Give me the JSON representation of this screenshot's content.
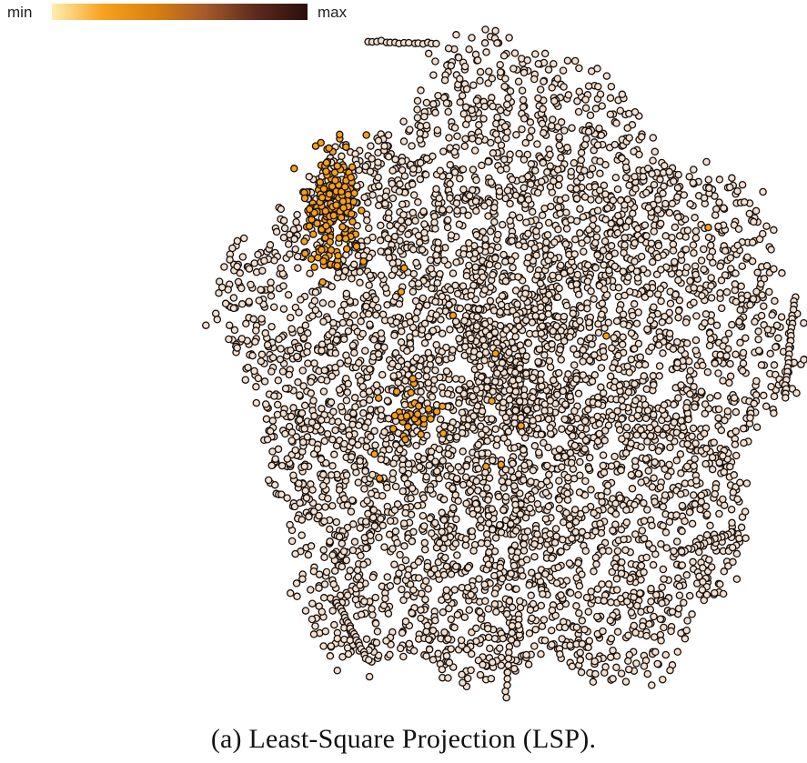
{
  "chart_data": {
    "type": "scatter",
    "title": "",
    "xlabel": "",
    "ylabel": "",
    "x_axis_visible": false,
    "y_axis_visible": false,
    "grid": false,
    "colormap": {
      "min_label": "min",
      "max_label": "max",
      "colors": [
        "#ffeeb0",
        "#f6a21e",
        "#d9800f",
        "#a45a2a",
        "#5c2a1c",
        "#2a0f0c"
      ],
      "placement": "top-left"
    },
    "point_style": {
      "default_fill": "#f1e2d6",
      "edge_color": "#1a0f0a",
      "highlight_fill": "#f3a11c"
    },
    "description_of_data": "dense point cloud of several thousand projected instances; nearly all points have low-end pale fill, one cluster at upper-left and a scattered group at the left center have orange (min-end) fill",
    "series": [
      {
        "cluster": "main cloud",
        "fill": "#f1e2d6",
        "center": [
          0.08,
          -0.02
        ],
        "spread": [
          0.36,
          0.36
        ],
        "approx_count": 5200
      },
      {
        "cluster": "upper-left arm",
        "fill": "#f3a11c",
        "center": [
          -0.5,
          0.48
        ],
        "spread": [
          0.07,
          0.15
        ],
        "approx_count": 180
      },
      {
        "cluster": "left-center group",
        "fill": "#f3a11c",
        "center": [
          -0.22,
          -0.12
        ],
        "spread": [
          0.08,
          0.07
        ],
        "approx_count": 35
      }
    ]
  },
  "caption": "(a)  Least-Square Projection (LSP)."
}
